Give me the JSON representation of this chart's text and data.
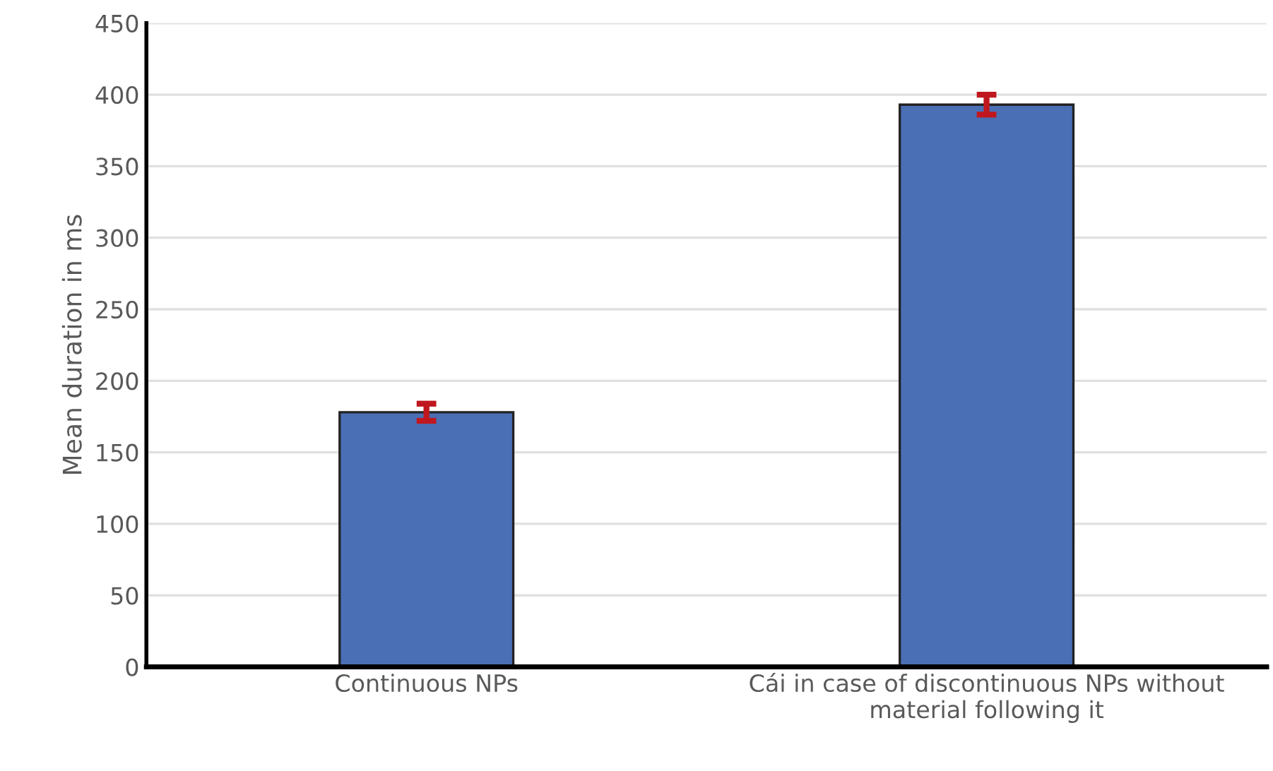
{
  "chart_data": {
    "type": "bar",
    "ylabel": "Mean duration in ms",
    "categories": [
      "Continuous NPs",
      "Cái in case of discontinuous NPs without material following it"
    ],
    "values": [
      178,
      393
    ],
    "errors": [
      6,
      7
    ],
    "color": "#4a6fb5",
    "ylim": [
      0,
      450
    ],
    "yticks": [
      0,
      50,
      100,
      150,
      200,
      250,
      300,
      350,
      400,
      450
    ],
    "grid": "y"
  }
}
